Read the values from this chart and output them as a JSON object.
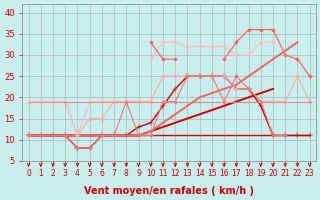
{
  "xlabel": "Vent moyen/en rafales ( km/h )",
  "background_color": "#c8eeee",
  "grid_color": "#aaaaaa",
  "x_values": [
    0,
    1,
    2,
    3,
    4,
    5,
    6,
    7,
    8,
    9,
    10,
    11,
    12,
    13,
    14,
    15,
    16,
    17,
    18,
    19,
    20,
    21,
    22,
    23
  ],
  "series": [
    {
      "y": [
        11,
        11,
        11,
        11,
        11,
        11,
        11,
        11,
        11,
        11,
        11,
        11,
        11,
        11,
        11,
        11,
        11,
        11,
        11,
        11,
        11,
        11,
        11,
        11
      ],
      "color": "#dd0000",
      "marker": null,
      "lw": 1.0
    },
    {
      "y": [
        11,
        11,
        11,
        11,
        8,
        8,
        11,
        11,
        11,
        13,
        14,
        18,
        22,
        25,
        25,
        25,
        25,
        22,
        22,
        18,
        11,
        11,
        11,
        11
      ],
      "color": "#cc0000",
      "marker": "+",
      "lw": 1.0,
      "ms": 4
    },
    {
      "y": [
        11,
        11,
        11,
        11,
        11,
        11,
        11,
        11,
        11,
        11,
        12,
        13,
        14,
        15,
        16,
        17,
        18,
        19,
        20,
        21,
        22,
        null,
        null,
        null
      ],
      "color": "#cc0000",
      "marker": null,
      "lw": 1.4
    },
    {
      "y": [
        11,
        11,
        11,
        11,
        11,
        11,
        11,
        11,
        11,
        11,
        12,
        14,
        16,
        18,
        20,
        21,
        22,
        23,
        25,
        27,
        29,
        31,
        33,
        null
      ],
      "color": "#ee6666",
      "marker": null,
      "lw": 1.4
    },
    {
      "y": [
        19,
        19,
        19,
        19,
        11,
        15,
        15,
        19,
        19,
        19,
        19,
        25,
        25,
        25,
        25,
        25,
        25,
        22,
        22,
        19,
        19,
        19,
        25,
        19
      ],
      "color": "#ffaaaa",
      "marker": "D",
      "lw": 0.8,
      "ms": 2
    },
    {
      "y": [
        11,
        11,
        11,
        11,
        8,
        8,
        11,
        11,
        19,
        11,
        11,
        19,
        19,
        25,
        25,
        25,
        19,
        25,
        22,
        19,
        11,
        11,
        null,
        null
      ],
      "color": "#ee7777",
      "marker": "D",
      "lw": 0.8,
      "ms": 2
    },
    {
      "y": [
        19,
        19,
        19,
        19,
        11,
        19,
        19,
        19,
        null,
        null,
        29,
        33,
        33,
        32,
        32,
        32,
        32,
        30,
        30,
        33,
        33,
        null,
        null,
        25
      ],
      "color": "#ffbbbb",
      "marker": "D",
      "lw": 0.8,
      "ms": 2
    },
    {
      "y": [
        null,
        null,
        null,
        null,
        null,
        null,
        null,
        null,
        null,
        null,
        33,
        29,
        29,
        null,
        null,
        null,
        29,
        33,
        36,
        36,
        36,
        30,
        29,
        25
      ],
      "color": "#ff6666",
      "marker": "D",
      "lw": 0.9,
      "ms": 2
    },
    {
      "y": [
        19,
        19,
        19,
        19,
        19,
        19,
        19,
        19,
        19,
        19,
        19,
        19,
        19,
        19,
        19,
        19,
        19,
        19,
        19,
        19,
        19,
        19,
        19,
        19
      ],
      "color": "#ff8888",
      "marker": null,
      "lw": 0.8
    }
  ],
  "ylim": [
    5,
    42
  ],
  "xlim": [
    -0.5,
    23.5
  ],
  "yticks": [
    5,
    10,
    15,
    20,
    25,
    30,
    35,
    40
  ],
  "xticks": [
    0,
    1,
    2,
    3,
    4,
    5,
    6,
    7,
    8,
    9,
    10,
    11,
    12,
    13,
    14,
    15,
    16,
    17,
    18,
    19,
    20,
    21,
    22,
    23
  ],
  "arrow_color": "#cc0000",
  "font_color": "#cc0000",
  "tick_fontsize": 5.5,
  "xlabel_fontsize": 7
}
